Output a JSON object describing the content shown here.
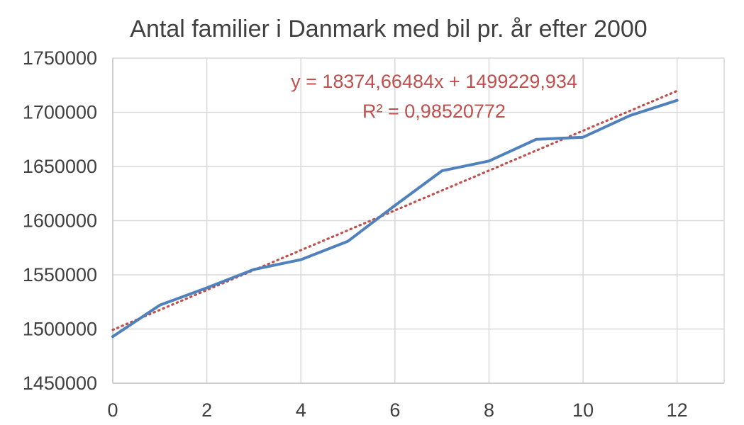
{
  "chart_data": {
    "type": "line",
    "title": "Antal familier i Danmark med bil pr. år efter 2000",
    "xlabel": "",
    "ylabel": "",
    "xlim": [
      0,
      13
    ],
    "ylim": [
      1450000,
      1750000
    ],
    "x_ticks": [
      0,
      2,
      4,
      6,
      8,
      10,
      12
    ],
    "x_tick_labels": [
      "0",
      "2",
      "4",
      "6",
      "8",
      "10",
      "12"
    ],
    "y_ticks": [
      1450000,
      1500000,
      1550000,
      1600000,
      1650000,
      1700000,
      1750000
    ],
    "y_tick_labels": [
      "1450000",
      "1500000",
      "1550000",
      "1600000",
      "1650000",
      "1700000",
      "1750000"
    ],
    "grid": true,
    "legend": "none",
    "series": [
      {
        "x": [
          0,
          1,
          2,
          3,
          4,
          5,
          6,
          7,
          8,
          9,
          10,
          11,
          12
        ],
        "values": [
          1493000,
          1522000,
          1538000,
          1555000,
          1564000,
          1581000,
          1614000,
          1646000,
          1655000,
          1675000,
          1677000,
          1697000,
          1711000
        ],
        "color": "#4f81bd",
        "style": "solid"
      }
    ],
    "trendline": {
      "type": "linear",
      "slope": 18374.66484,
      "intercept": 1499229.934,
      "x_range": [
        0,
        12
      ],
      "color": "#c0504d",
      "style": "dotted",
      "equation_label": "y = 18374,66484x + 1499229,934",
      "r2_label": "R² = 0,98520772"
    }
  }
}
